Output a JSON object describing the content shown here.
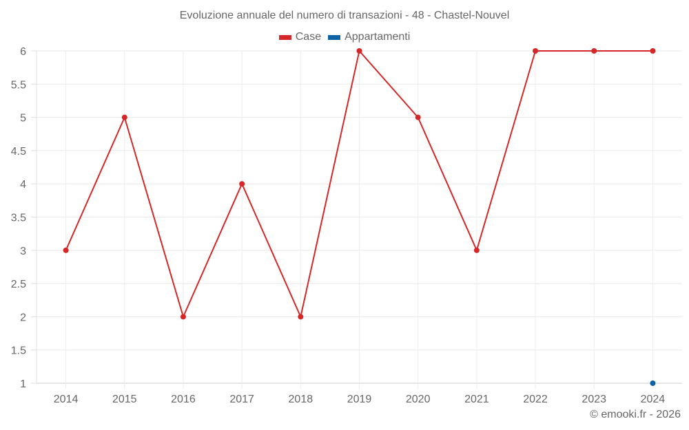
{
  "chart_data": {
    "type": "line",
    "title": "Evoluzione annuale del numero di transazioni - 48 - Chastel-Nouvel",
    "xlabel": "",
    "ylabel": "",
    "categories": [
      "2014",
      "2015",
      "2016",
      "2017",
      "2018",
      "2019",
      "2020",
      "2021",
      "2022",
      "2023",
      "2024"
    ],
    "series": [
      {
        "name": "Case",
        "color": "#d62728",
        "values": [
          3,
          5,
          2,
          4,
          2,
          6,
          5,
          3,
          6,
          6,
          6
        ]
      },
      {
        "name": "Appartamenti",
        "color": "#0d63a5",
        "values": [
          null,
          null,
          null,
          null,
          null,
          null,
          null,
          null,
          null,
          null,
          1
        ]
      }
    ],
    "ylim": [
      1,
      6
    ],
    "yticks": [
      "1",
      "1.5",
      "2",
      "2.5",
      "3",
      "3.5",
      "4",
      "4.5",
      "5",
      "5.5",
      "6"
    ],
    "grid": true,
    "legend_position": "top-center"
  },
  "credit": "© emooki.fr - 2026"
}
